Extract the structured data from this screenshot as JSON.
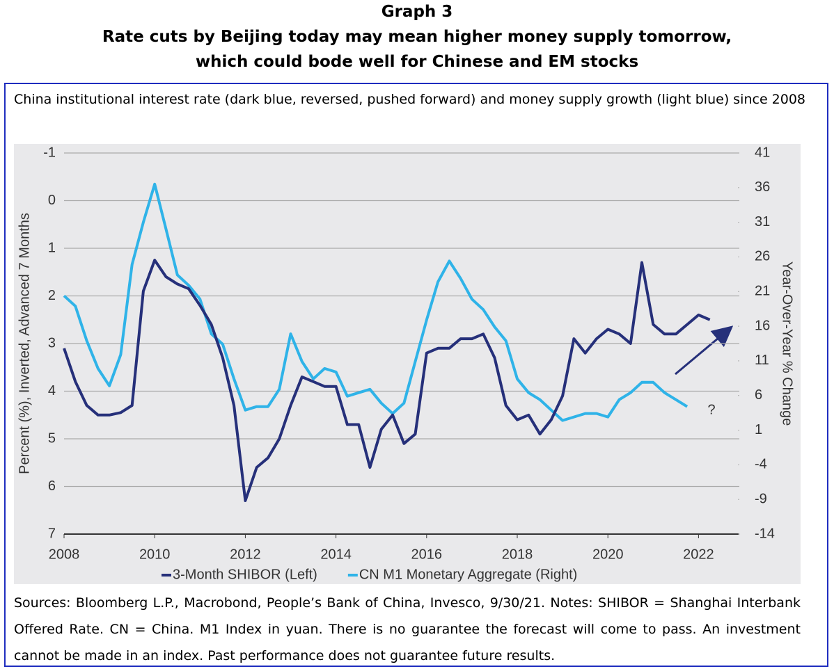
{
  "header": {
    "label": "Graph 3",
    "title_lines": [
      "Rate cuts by Beijing today may mean higher money supply tomorrow,",
      "which could bode well for Chinese and EM stocks"
    ]
  },
  "subtitle": "China institutional interest rate (dark blue, reversed, pushed forward) and money supply growth (light blue) since 2008",
  "chart_data": {
    "type": "line",
    "ylabel": "Percent (%), Inverted, Advanced 7 Months",
    "y2label": "Year-Over-Year % Change",
    "annotation": "?",
    "x": [
      2008.0,
      2008.25,
      2008.5,
      2008.75,
      2009.0,
      2009.25,
      2009.5,
      2009.75,
      2010.0,
      2010.25,
      2010.5,
      2010.75,
      2011.0,
      2011.25,
      2011.5,
      2011.75,
      2012.0,
      2012.25,
      2012.5,
      2012.75,
      2013.0,
      2013.25,
      2013.5,
      2013.75,
      2014.0,
      2014.25,
      2014.5,
      2014.75,
      2015.0,
      2015.25,
      2015.5,
      2015.75,
      2016.0,
      2016.25,
      2016.5,
      2016.75,
      2017.0,
      2017.25,
      2017.5,
      2017.75,
      2018.0,
      2018.25,
      2018.5,
      2018.75,
      2019.0,
      2019.25,
      2019.5,
      2019.75,
      2020.0,
      2020.25,
      2020.5,
      2020.75,
      2021.0,
      2021.25,
      2021.5,
      2021.75,
      2022.0,
      2022.25
    ],
    "series": [
      {
        "name": "3-Month SHIBOR (Left)",
        "color": "#26307a",
        "axis": "y",
        "values": [
          3.1,
          3.8,
          4.3,
          4.5,
          4.5,
          4.45,
          4.3,
          1.9,
          1.25,
          1.6,
          1.75,
          1.85,
          2.2,
          2.6,
          3.3,
          4.3,
          6.3,
          5.6,
          5.4,
          5.0,
          4.3,
          3.7,
          3.8,
          3.9,
          3.9,
          4.7,
          4.7,
          5.6,
          4.8,
          4.5,
          5.1,
          4.9,
          3.2,
          3.1,
          3.1,
          2.9,
          2.9,
          2.8,
          3.3,
          4.3,
          4.6,
          4.5,
          4.9,
          4.6,
          4.1,
          2.9,
          3.2,
          2.9,
          2.7,
          2.8,
          3.0,
          1.3,
          2.6,
          2.8,
          2.8,
          2.6,
          2.4,
          2.5
        ]
      },
      {
        "name": "CN M1 Monetary Aggregate (Right)",
        "color": "#2fb3e8",
        "axis": "y2",
        "values": [
          20.4,
          18.9,
          13.9,
          9.9,
          7.4,
          11.9,
          24.9,
          31,
          36.5,
          30,
          23.4,
          21.9,
          19.9,
          14.9,
          13.4,
          8.4,
          3.9,
          4.4,
          4.4,
          6.9,
          14.9,
          10.9,
          8.4,
          9.9,
          9.4,
          5.9,
          6.4,
          6.9,
          4.9,
          3.4,
          4.9,
          10.9,
          16.9,
          22.4,
          25.4,
          22.9,
          19.9,
          18.4,
          15.9,
          13.9,
          8.4,
          6.4,
          5.4,
          3.9,
          2.4,
          2.9,
          3.4,
          3.4,
          2.9,
          5.4,
          6.4,
          7.9,
          7.9,
          6.4,
          5.4,
          4.4,
          null,
          null
        ]
      }
    ],
    "xlim": [
      2008,
      2022.9
    ],
    "xticks": [
      2008,
      2010,
      2012,
      2014,
      2016,
      2018,
      2020,
      2022
    ],
    "ylim": [
      -1,
      7
    ],
    "yreverse": true,
    "yticks": [
      -1,
      0,
      1,
      2,
      3,
      4,
      5,
      6,
      7
    ],
    "y2lim": [
      -14,
      41
    ],
    "y2ticks": [
      41,
      36,
      31,
      26,
      21,
      16,
      11,
      6,
      1,
      -4,
      -9,
      -14
    ],
    "grid": true
  },
  "sources": "Sources: Bloomberg L.P., Macrobond, People’s Bank of China, Invesco, 9/30/21. Notes: SHIBOR = Shanghai Interbank Offered Rate. CN = China. M1 Index in yuan. There is no guarantee the forecast will come to pass. An investment cannot be made in an index. Past performance does not guarantee future results."
}
